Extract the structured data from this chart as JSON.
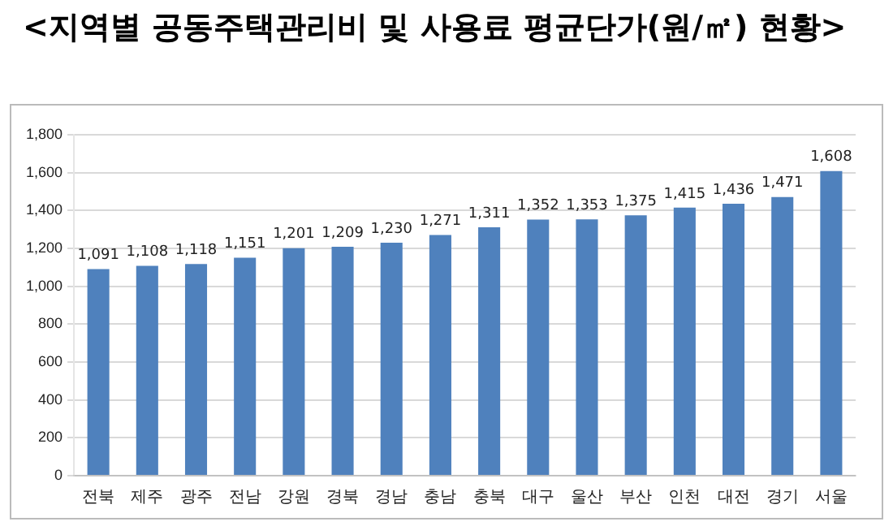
{
  "chart_data": {
    "type": "bar",
    "title": "<지역별 공동주택관리비 및 사용료 평균단가(원/㎡) 현황>",
    "categories": [
      "전북",
      "제주",
      "광주",
      "전남",
      "강원",
      "경북",
      "경남",
      "충남",
      "충북",
      "대구",
      "울산",
      "부산",
      "인천",
      "대전",
      "경기",
      "서울"
    ],
    "values": [
      1091,
      1108,
      1118,
      1151,
      1201,
      1209,
      1230,
      1271,
      1311,
      1352,
      1353,
      1375,
      1415,
      1436,
      1471,
      1608
    ],
    "value_labels": [
      "1,091",
      "1,108",
      "1,118",
      "1,151",
      "1,201",
      "1,209",
      "1,230",
      "1,271",
      "1,311",
      "1,352",
      "1,353",
      "1,375",
      "1,415",
      "1,436",
      "1,471",
      "1,608"
    ],
    "color": "#4f81bd",
    "ylim": [
      0,
      1800
    ],
    "yticks": [
      {
        "value": 0,
        "label": "0"
      },
      {
        "value": 200,
        "label": "200"
      },
      {
        "value": 400,
        "label": "400"
      },
      {
        "value": 600,
        "label": "600"
      },
      {
        "value": 800,
        "label": "800"
      },
      {
        "value": 1000,
        "label": "1,000"
      },
      {
        "value": 1200,
        "label": "1,200"
      },
      {
        "value": 1400,
        "label": "1,400"
      },
      {
        "value": 1600,
        "label": "1,600"
      },
      {
        "value": 1800,
        "label": "1,800"
      }
    ],
    "grid": "y",
    "legend": false
  }
}
